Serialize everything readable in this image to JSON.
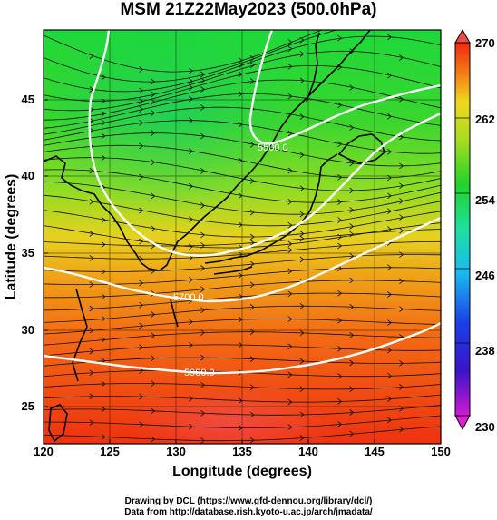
{
  "title": "MSM 21Z22May2023 (500.0hPa)",
  "xaxis": {
    "label": "Longitude (degrees)",
    "ticks": [
      "120",
      "125",
      "130",
      "135",
      "140",
      "145",
      "150"
    ]
  },
  "yaxis": {
    "label": "Latitude  (degrees)",
    "ticks": [
      "25",
      "30",
      "35",
      "40",
      "45"
    ]
  },
  "colorbar": {
    "ticks": [
      "230",
      "238",
      "246",
      "254",
      "262",
      "270"
    ]
  },
  "contours": [
    "5500.0",
    "5700.0",
    "5900.0"
  ],
  "credits": {
    "line1": "Drawing by DCL (https://www.gfd-dennou.org/library/dcl/)",
    "line2": "Data from http://database.rish.kyoto-u.ac.jp/arch/jmadata/"
  },
  "chart_data": {
    "type": "heatmap",
    "title": "MSM 21Z22May2023 (500.0hPa)",
    "xlabel": "Longitude (degrees)",
    "ylabel": "Latitude  (degrees)",
    "xlim": [
      120,
      150
    ],
    "ylim": [
      22.5,
      48
    ],
    "colorbar_range": [
      230,
      270
    ],
    "colorbar_ticks": [
      230,
      238,
      246,
      254,
      262,
      270
    ],
    "colors": {
      "low": "#d01ad0",
      "mid_low": "#1fe0e0",
      "mid": "#2ed62e",
      "mid_high": "#e8e020",
      "high": "#ee2a10"
    },
    "geopotential_contours": [
      {
        "label": "5500.0",
        "points": [
          [
            123.8,
            47.5
          ],
          [
            123.0,
            44.0
          ],
          [
            125.5,
            38.5
          ],
          [
            129.5,
            35.8
          ],
          [
            133.0,
            36.0
          ],
          [
            135.0,
            35.5
          ],
          [
            141.0,
            36.8
          ],
          [
            143.5,
            38.6
          ],
          [
            150,
            40.0
          ]
        ]
      },
      {
        "label": "5700.0",
        "points": [
          [
            120,
            35.2
          ],
          [
            124.0,
            34.2
          ],
          [
            128.0,
            33.0
          ],
          [
            132.0,
            32.5
          ],
          [
            136.0,
            32.8
          ],
          [
            140.0,
            33.4
          ],
          [
            145.0,
            34.3
          ],
          [
            150,
            35.4
          ]
        ]
      },
      {
        "label": "5900.0",
        "points": [
          [
            120,
            28.2
          ],
          [
            124.0,
            27.4
          ],
          [
            128.0,
            26.9
          ],
          [
            132.0,
            26.7
          ],
          [
            136.0,
            26.8
          ],
          [
            140.0,
            27.2
          ],
          [
            145.0,
            27.9
          ],
          [
            150,
            28.5
          ]
        ]
      }
    ]
  }
}
